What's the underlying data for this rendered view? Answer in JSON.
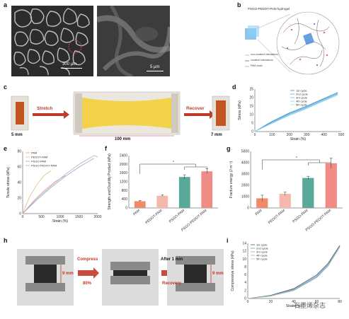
{
  "panels": {
    "a": "a",
    "b": "b",
    "c": "c",
    "d": "d",
    "e": "e",
    "f": "f",
    "g": "g",
    "h": "h",
    "i": "i"
  },
  "panel_a": {
    "scale1": "300 μm",
    "scale2": "5 μm"
  },
  "panel_b": {
    "title": "PSGO-PEDOT-PAM hydrogel",
    "legend": [
      "non-covalent interactions",
      "covalent interactions",
      "PAM chain"
    ]
  },
  "panel_c": {
    "stretch": "Stretch",
    "recover": "Recover",
    "len_start": "5 mm",
    "len_stretched": "100 mm",
    "len_end": "7 mm"
  },
  "panel_h": {
    "compress": "Compress",
    "compress_pct": "80%",
    "after": "After 1 min",
    "recovery": "Recovery",
    "h_start": "9 mm",
    "h_end": "9 mm"
  },
  "watermark": "石墨烯杂志",
  "colors": {
    "pam": "#e8a08a",
    "pedot": "#d9c27a",
    "psgo": "#7fb6c9",
    "psgo_pedot": "#c8a0c8",
    "bar_pam": "#f08b6a",
    "bar_pedot": "#f4b9ac",
    "bar_psgo": "#5aa89a",
    "bar_psgo_pedot": "#f08c86",
    "cycle_blue": "#4aa9d6"
  },
  "chart_data": [
    {
      "id": "d",
      "type": "line",
      "xlabel": "Strain (%)",
      "ylabel": "Stress (kPa)",
      "xlim": [
        0,
        500
      ],
      "ylim": [
        0,
        25
      ],
      "xticks": [
        "0",
        "100",
        "200",
        "300",
        "400",
        "500"
      ],
      "yticks": [
        "0",
        "5",
        "10",
        "15",
        "20",
        "25"
      ],
      "series": [
        {
          "name": "1st cycle",
          "x": [
            0,
            100,
            200,
            300,
            400,
            480
          ],
          "y": [
            0,
            6,
            11,
            15,
            19.5,
            23
          ]
        },
        {
          "name": "2nd cycle",
          "x": [
            0,
            100,
            200,
            300,
            400,
            480
          ],
          "y": [
            0,
            5.5,
            10.5,
            14.5,
            19,
            22.5
          ]
        },
        {
          "name": "3rd cycle",
          "x": [
            0,
            100,
            200,
            300,
            400,
            480
          ],
          "y": [
            0,
            5.2,
            10,
            14,
            18.5,
            22
          ]
        },
        {
          "name": "4th cycle",
          "x": [
            0,
            100,
            200,
            300,
            400,
            480
          ],
          "y": [
            0,
            5,
            9.7,
            13.8,
            18.2,
            21.8
          ]
        },
        {
          "name": "5th cycle",
          "x": [
            0,
            100,
            200,
            300,
            400,
            480
          ],
          "y": [
            0,
            4.8,
            9.5,
            13.5,
            18,
            21.5
          ]
        }
      ]
    },
    {
      "id": "e",
      "type": "line",
      "xlabel": "Strain (%)",
      "ylabel": "Tensile stress (kPa)",
      "xlim": [
        0,
        2100
      ],
      "ylim": [
        0,
        90
      ],
      "xticks": [
        "0",
        "500",
        "1000",
        "1500",
        "2000"
      ],
      "yticks": [
        "0",
        "20",
        "40",
        "60",
        "80"
      ],
      "series": [
        {
          "name": "PAM",
          "x": [
            0,
            300,
            600,
            900,
            1200
          ],
          "y": [
            0,
            18,
            33,
            46,
            55
          ]
        },
        {
          "name": "PEDOT-PAM",
          "x": [
            0,
            200,
            400,
            600,
            800
          ],
          "y": [
            0,
            25,
            42,
            55,
            62
          ]
        },
        {
          "name": "PSGO-PAM",
          "x": [
            0,
            400,
            800,
            1200,
            1600,
            2000
          ],
          "y": [
            0,
            20,
            38,
            54,
            68,
            80
          ]
        },
        {
          "name": "PSGO-PEDOT-PAM",
          "x": [
            0,
            400,
            800,
            1200,
            1600,
            2000,
            2100
          ],
          "y": [
            0,
            22,
            40,
            57,
            72,
            84,
            82
          ]
        }
      ]
    },
    {
      "id": "f",
      "type": "bar",
      "ylabel": "Strength and Ductility Product (kPa)",
      "ylim": [
        0,
        2400
      ],
      "yticks": [
        "0",
        "400",
        "800",
        "1200",
        "1600",
        "2000",
        "2400"
      ],
      "categories": [
        "PAM",
        "PEDOT-PAM",
        "PSGO-PAM",
        "PSGO-PEDOT-PAM"
      ],
      "values": [
        310,
        560,
        1420,
        1680
      ],
      "errors": [
        30,
        40,
        100,
        110
      ],
      "sig": "*"
    },
    {
      "id": "g",
      "type": "bar",
      "ylabel": "Fracture energy (J m⁻²)",
      "ylim": [
        0,
        5000
      ],
      "yticks": [
        "0",
        "1000",
        "2000",
        "3000",
        "4000",
        "5000"
      ],
      "categories": [
        "PAM",
        "PEDOT-PAM",
        "PSGO-PAM",
        "PSGO-PEDOT-PAM"
      ],
      "values": [
        850,
        1250,
        2650,
        3950
      ],
      "errors": [
        280,
        150,
        150,
        450
      ],
      "sig": "*"
    },
    {
      "id": "i",
      "type": "line",
      "xlabel": "Strain (%)",
      "ylabel": "Compressive stress (kPa)",
      "xlim": [
        0,
        80
      ],
      "ylim": [
        0,
        14
      ],
      "xticks": [
        "0",
        "20",
        "40",
        "60",
        "80"
      ],
      "yticks": [
        "0",
        "2",
        "4",
        "6",
        "8",
        "10",
        "12",
        "14"
      ],
      "series": [
        {
          "name": "1st cycle",
          "x": [
            0,
            20,
            40,
            60,
            70,
            80
          ],
          "y": [
            0,
            0.8,
            2.5,
            6,
            9,
            13.5
          ]
        },
        {
          "name": "2nd cycle",
          "x": [
            0,
            20,
            40,
            60,
            70,
            80
          ],
          "y": [
            0,
            0.7,
            2.3,
            5.7,
            8.7,
            13.3
          ]
        },
        {
          "name": "3rd cycle",
          "x": [
            0,
            20,
            40,
            60,
            70,
            80
          ],
          "y": [
            0,
            0.65,
            2.2,
            5.5,
            8.5,
            13.2
          ]
        },
        {
          "name": "4th cycle",
          "x": [
            0,
            20,
            40,
            60,
            70,
            80
          ],
          "y": [
            0,
            0.6,
            2.1,
            5.4,
            8.4,
            13.1
          ]
        },
        {
          "name": "5th cycle",
          "x": [
            0,
            20,
            40,
            60,
            70,
            80
          ],
          "y": [
            0,
            0.6,
            2,
            5.3,
            8.3,
            13
          ]
        }
      ]
    }
  ]
}
